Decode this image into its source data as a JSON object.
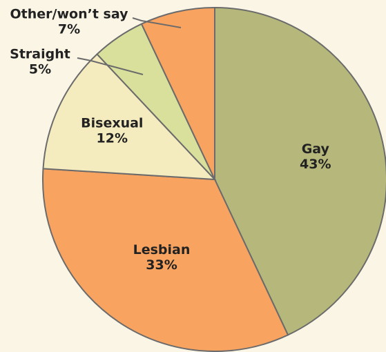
{
  "chart_data": {
    "type": "pie",
    "categories": [
      "Gay",
      "Lesbian",
      "Bisexual",
      "Straight",
      "Other/won’t say"
    ],
    "values": [
      43,
      33,
      12,
      5,
      7
    ],
    "value_labels": [
      "43%",
      "33%",
      "12%",
      "5%",
      "7%"
    ],
    "colors": [
      "#b5b87a",
      "#f8a35f",
      "#f4ebbf",
      "#d8e09c",
      "#f8a35f"
    ]
  }
}
